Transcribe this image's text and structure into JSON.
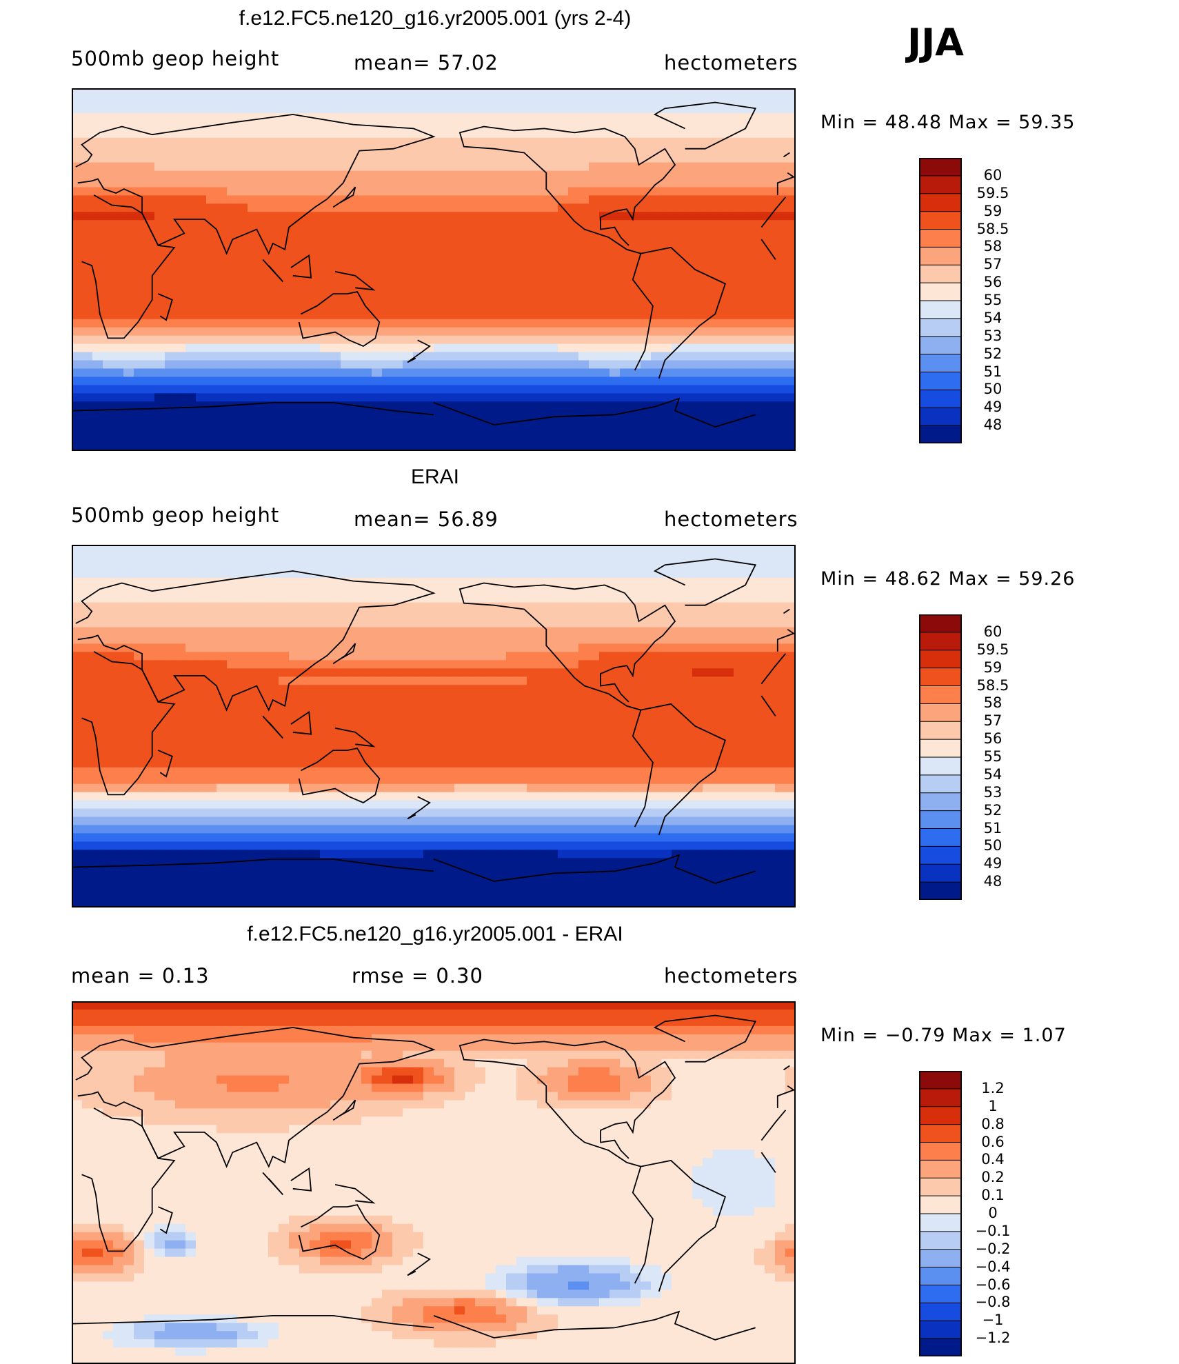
{
  "season": "JJA",
  "panels": [
    {
      "title": "f.e12.FC5.ne120_g16.yr2005.001 (yrs 2-4)",
      "left_label": "500mb  geop  height",
      "center_label": "mean=   57.02",
      "right_label": "hectometers",
      "minmax": "Min  =    48.48  Max  =    59.35",
      "field": "model",
      "levels": [
        "60",
        "59.5",
        "59",
        "58.5",
        "58",
        "57",
        "56",
        "55",
        "54",
        "53",
        "52",
        "51",
        "50",
        "49",
        "48"
      ],
      "colors": [
        "#8c0a0a",
        "#b81b0a",
        "#d72e0c",
        "#f0521e",
        "#fc7f4c",
        "#fca47c",
        "#fdc9ad",
        "#fde6d6",
        "#dbe7f7",
        "#b7cdf3",
        "#8fb0f0",
        "#5b8ff0",
        "#2f6df0",
        "#174ce0",
        "#0a32c0",
        "#001a8a"
      ]
    },
    {
      "title": "ERAI",
      "left_label": "500mb  geop  height",
      "center_label": "mean=   56.89",
      "right_label": "hectometers",
      "minmax": "Min  =    48.62  Max  =    59.26",
      "field": "obs",
      "levels": [
        "60",
        "59.5",
        "59",
        "58.5",
        "58",
        "57",
        "56",
        "55",
        "54",
        "53",
        "52",
        "51",
        "50",
        "49",
        "48"
      ],
      "colors": [
        "#8c0a0a",
        "#b81b0a",
        "#d72e0c",
        "#f0521e",
        "#fc7f4c",
        "#fca47c",
        "#fdc9ad",
        "#fde6d6",
        "#dbe7f7",
        "#b7cdf3",
        "#8fb0f0",
        "#5b8ff0",
        "#2f6df0",
        "#174ce0",
        "#0a32c0",
        "#001a8a"
      ]
    },
    {
      "title": "f.e12.FC5.ne120_g16.yr2005.001 - ERAI",
      "left_label": "mean  =      0.13",
      "center_label": "rmse  =      0.30",
      "right_label": "hectometers",
      "minmax": "Min  =    −0.79  Max  =      1.07",
      "field": "diff",
      "levels": [
        "1.2",
        "1",
        "0.8",
        "0.6",
        "0.4",
        "0.2",
        "0.1",
        "0",
        "−0.1",
        "−0.2",
        "−0.4",
        "−0.6",
        "−0.8",
        "−1",
        "−1.2"
      ],
      "colors": [
        "#8c0a0a",
        "#b81b0a",
        "#d72e0c",
        "#f0521e",
        "#fc7f4c",
        "#fca47c",
        "#fdc9ad",
        "#fde6d6",
        "#dbe7f7",
        "#b7cdf3",
        "#8fb0f0",
        "#5b8ff0",
        "#2f6df0",
        "#174ce0",
        "#0a32c0",
        "#001a8a"
      ]
    }
  ]
}
